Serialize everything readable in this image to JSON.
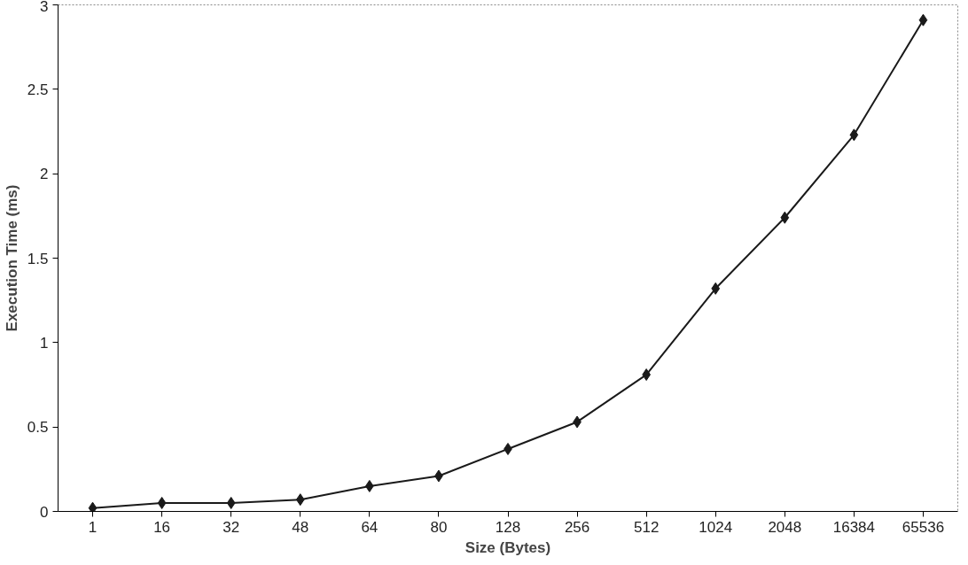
{
  "chart_data": {
    "type": "line",
    "xlabel": "Size (Bytes)",
    "ylabel": "Execution Time (ms)",
    "categories": [
      "1",
      "16",
      "32",
      "48",
      "64",
      "80",
      "128",
      "256",
      "512",
      "1024",
      "2048",
      "16384",
      "65536"
    ],
    "series": [
      {
        "color": "#1a1a1a",
        "values": [
          0.02,
          0.05,
          0.05,
          0.07,
          0.15,
          0.21,
          0.37,
          0.53,
          0.81,
          1.32,
          1.74,
          2.23,
          2.91
        ]
      }
    ],
    "ylim": [
      0,
      3
    ],
    "yticks": [
      0,
      0.5,
      1,
      1.5,
      2,
      2.5,
      3
    ],
    "grid": false,
    "marker": "diamond",
    "line_style": "solid"
  }
}
